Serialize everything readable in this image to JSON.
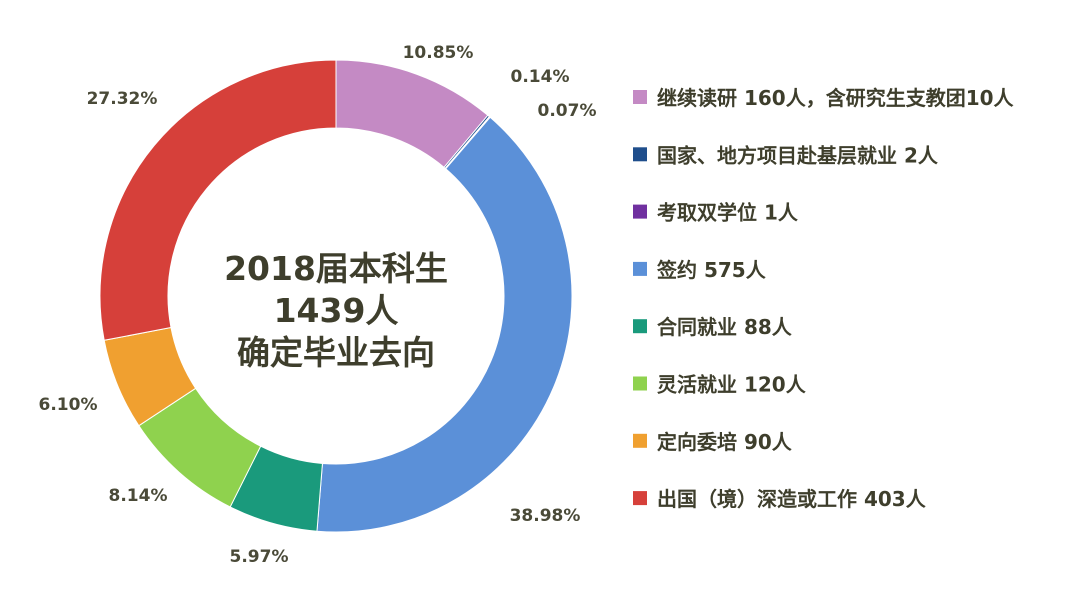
{
  "chart_data": {
    "type": "pie",
    "title": "",
    "center_text": [
      "2018届本科生",
      "1439人",
      "确定毕业去向"
    ],
    "legend_position": "right",
    "categories": [
      "继续读研 160人，含研究生支教团10人",
      "国家、地方项目赴基层就业 2人",
      "考取双学位 1人",
      "签约 575人",
      "合同就业 88人",
      "灵活就业 120人",
      "定向委培 90人",
      "出国（境）深造或工作 403人"
    ],
    "values": [
      160,
      2,
      1,
      575,
      88,
      120,
      90,
      403
    ],
    "slice_labels": [
      "10.85%",
      "0.14%",
      "0.07%",
      "38.98%",
      "5.97%",
      "8.14%",
      "6.10%",
      "27.32%"
    ],
    "colors": [
      "#c48ac4",
      "#1f4e8c",
      "#7030a0",
      "#5b90d8",
      "#1a9a7c",
      "#8fd24e",
      "#f0a030",
      "#d6403a"
    ]
  }
}
